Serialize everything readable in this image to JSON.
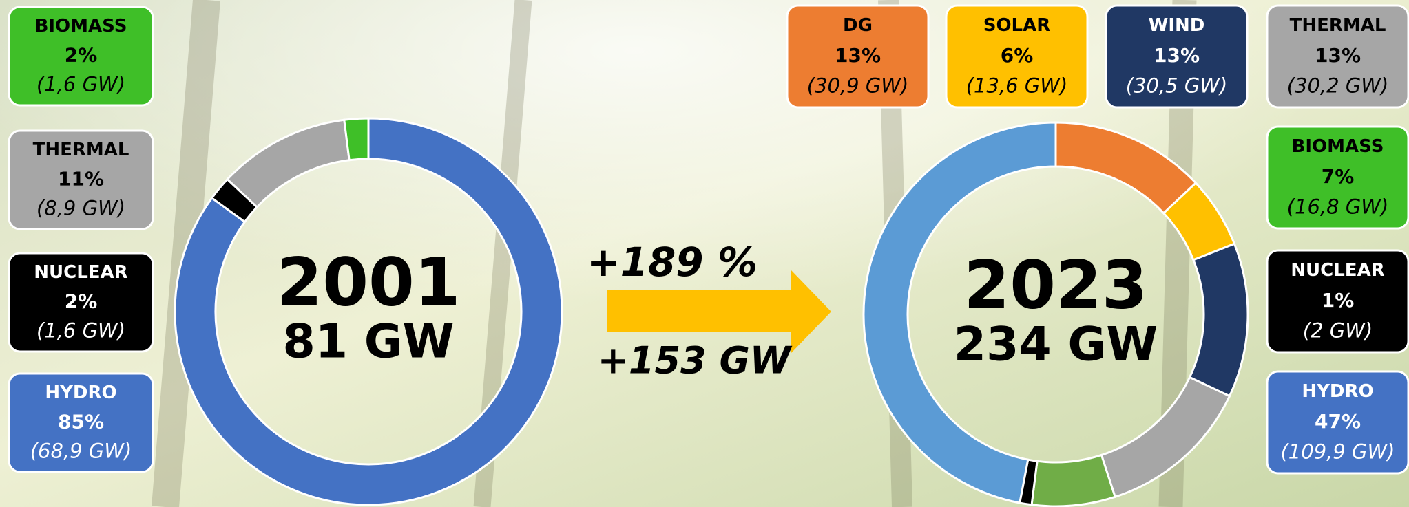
{
  "chart_data": [
    {
      "type": "pie",
      "title": "2001",
      "subtitle": "81 GW",
      "categories": [
        "HYDRO",
        "NUCLEAR",
        "THERMAL",
        "BIOMASS"
      ],
      "values": [
        85,
        2,
        11,
        2
      ],
      "value_labels": [
        "85%",
        "2%",
        "11%",
        "2%"
      ],
      "capacity_labels": [
        "(68,9 GW)",
        "(1,6 GW)",
        "(8,9 GW)",
        "(1,6 GW)"
      ],
      "colors": [
        "#4472c4",
        "#000000",
        "#a6a6a6",
        "#3fbf28"
      ],
      "box_colors": [
        "#4472c4",
        "#000000",
        "#a6a6a6",
        "#3fbf28"
      ]
    },
    {
      "type": "pie",
      "title": "2023",
      "subtitle": "234 GW",
      "categories": [
        "DG",
        "SOLAR",
        "WIND",
        "THERMAL",
        "BIOMASS",
        "NUCLEAR",
        "HYDRO"
      ],
      "values": [
        13,
        6,
        13,
        13,
        7,
        1,
        47
      ],
      "value_labels": [
        "13%",
        "6%",
        "13%",
        "13%",
        "7%",
        "1%",
        "47%"
      ],
      "capacity_labels": [
        "(30,9 GW)",
        "(13,6 GW)",
        "(30,5 GW)",
        "(30,2 GW)",
        "(16,8 GW)",
        "(2 GW)",
        "(109,9 GW)"
      ],
      "colors": [
        "#ed7d31",
        "#ffc000",
        "#203864",
        "#a6a6a6",
        "#70ad47",
        "#000000",
        "#5b9bd5"
      ],
      "box_colors": [
        "#ed7d31",
        "#ffc000",
        "#203864",
        "#a6a6a6",
        "#3fbf28",
        "#000000",
        "#4472c4"
      ]
    }
  ],
  "growth": {
    "percent": "+189 %",
    "capacity": "+153 GW"
  }
}
